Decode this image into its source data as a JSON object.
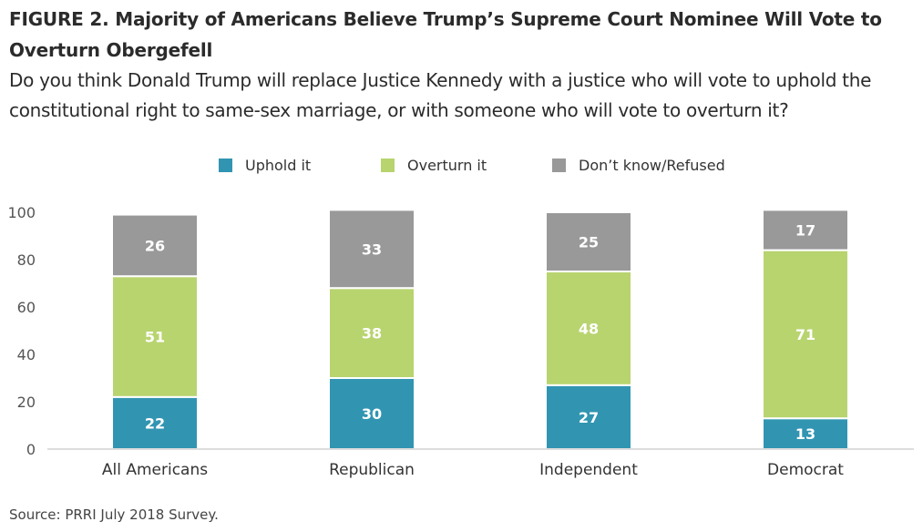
{
  "header": {
    "title": "FIGURE 2. Majority of Americans Believe Trump’s Supreme Court Nominee Will Vote to Overturn Obergefell",
    "subtitle": "Do you think Donald Trump will replace Justice Kennedy with a justice who will vote to uphold the constitutional right to same-sex marriage, or with someone who will vote to overturn it?"
  },
  "footer": {
    "source": "Source: PRRI July 2018 Survey."
  },
  "chart_data": {
    "type": "bar",
    "stacked": true,
    "categories": [
      "All Americans",
      "Republican",
      "Independent",
      "Democrat"
    ],
    "series": [
      {
        "name": "Uphold it",
        "color": "#3195b2",
        "values": [
          22,
          30,
          27,
          13
        ]
      },
      {
        "name": "Overturn it",
        "color": "#b8d46f",
        "values": [
          51,
          38,
          48,
          71
        ]
      },
      {
        "name": "Don’t know/Refused",
        "color": "#999999",
        "values": [
          26,
          33,
          25,
          17
        ]
      }
    ],
    "ylim": [
      0,
      100
    ],
    "yticks": [
      0,
      20,
      40,
      60,
      80,
      100
    ],
    "xlabel": "",
    "ylabel": "",
    "grid": false,
    "legend_position": "top-center"
  }
}
